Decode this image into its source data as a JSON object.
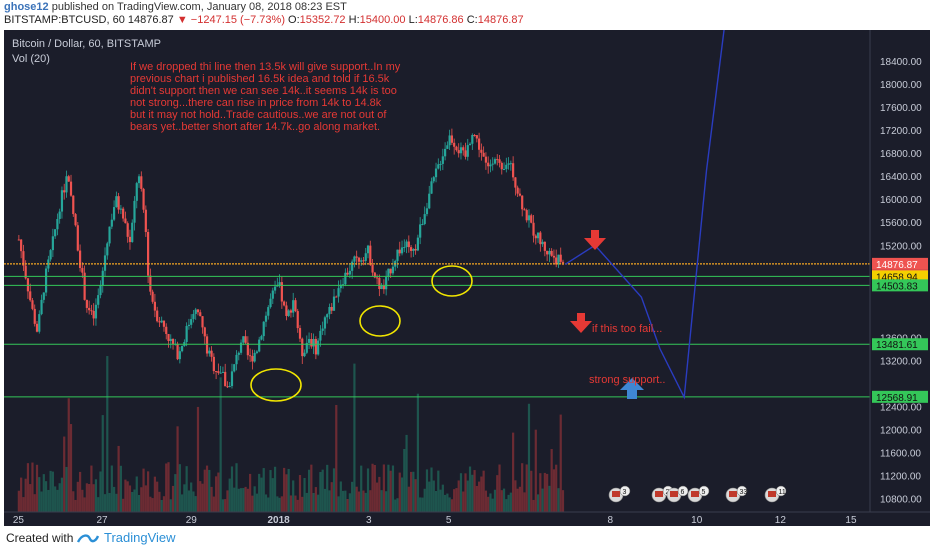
{
  "header": {
    "user": "ghose12",
    "published": "published on TradingView.com, January 08, 2018 08:23 EST",
    "symbol": "BITSTAMP:BTCUSD, 60",
    "last": "14876.87",
    "change": "−1247.15 (−7.73%)",
    "o_label": "O:",
    "o_val": "15352.72",
    "h_label": "H:",
    "h_val": "15400.00",
    "l_label": "L:",
    "l_val": "14876.86",
    "c_label": "C:",
    "c_val": "14876.87"
  },
  "chart": {
    "title": "Bitcoin / Dollar, 60, BITSTAMP",
    "vol_label": "Vol (20)",
    "note_lines": [
      "If we dropped thi line then 13.5k will give support..In my",
      "previous chart i published 16.5k idea and told if 16.5k",
      "didn't support then we can see 14k..it seems 14k is too",
      "not strong...there can rise in price from 14k to 14.8k",
      "but it may not hold..Trade cautious..we are not out of",
      "bears yet..better short after 14.7k..go along market."
    ],
    "note_fail": "if this too fail...",
    "note_support": "strong support..",
    "colors": {
      "bg": "#1b1d2a",
      "up": "#26a69a",
      "down": "#ef5350",
      "annot": "#e53935",
      "level": "#34c759",
      "current": "#f5a623",
      "forecast": "#2a3cc0",
      "circle": "#f2e600",
      "arrow_up": "#3f86d4"
    }
  },
  "chart_data": {
    "type": "candlestick",
    "title": "Bitcoin / Dollar, 60, BITSTAMP",
    "y_ticks": [
      "18400.00",
      "18000.00",
      "17600.00",
      "17200.00",
      "16800.00",
      "16400.00",
      "16000.00",
      "15600.00",
      "15200.00",
      "13600.00",
      "13200.00",
      "12400.00",
      "12000.00",
      "11600.00",
      "11200.00",
      "10800.00"
    ],
    "x_ticks": [
      "25",
      "27",
      "29",
      "2018",
      "3",
      "5",
      "8",
      "10",
      "12",
      "15"
    ],
    "price_labels": [
      {
        "text": "14876.87",
        "kind": "last"
      },
      {
        "text": "37:10",
        "kind": "countdown"
      },
      {
        "text": "14658.94",
        "kind": "level"
      },
      {
        "text": "14503.83",
        "kind": "level"
      },
      {
        "text": "13481.61",
        "kind": "level"
      },
      {
        "text": "12568.91",
        "kind": "level"
      }
    ],
    "levels": [
      14876.87,
      14658.94,
      14503.83,
      13481.61,
      12568.91
    ],
    "path_x": [
      25.0,
      25.3,
      25.7,
      26.0,
      26.4,
      26.8,
      27.2,
      27.6,
      28.0,
      28.3,
      28.6,
      29.0,
      29.4,
      29.8,
      30.2,
      30.6,
      31.0,
      31.4,
      31.8,
      32.0,
      32.4,
      32.8,
      33.2,
      33.6,
      34.0,
      34.4,
      34.8,
      35.1,
      35.5,
      35.9,
      36.2,
      36.6,
      37.0,
      37.4,
      37.8,
      38.2,
      38.6,
      39.0,
      39.4,
      39.8,
      40.2,
      40.6,
      41.0,
      41.4,
      41.8,
      42.2,
      42.6,
      43.0,
      43.4,
      43.8,
      44.2,
      44.6,
      45.0,
      45.4,
      45.8,
      46.2,
      46.6,
      47.0,
      47.4,
      47.8,
      48.2,
      48.6,
      49.0,
      49.4,
      49.8,
      50.2,
      50.6,
      51.0,
      51.4,
      51.8,
      52.2,
      52.6,
      53.0,
      53.4,
      53.8,
      54.2,
      54.4
    ],
    "path_price": [
      15300,
      14800,
      14100,
      13700,
      14600,
      15200,
      15900,
      16400,
      15600,
      14900,
      14200,
      13900,
      14500,
      15400,
      16000,
      15700,
      15200,
      16500,
      15600,
      14500,
      14000,
      13800,
      13500,
      13300,
      13700,
      14100,
      13900,
      13400,
      13100,
      13000,
      12700,
      13100,
      13600,
      13200,
      13400,
      13900,
      14300,
      14500,
      13900,
      14300,
      13300,
      13600,
      13400,
      13900,
      14100,
      14500,
      14700,
      14900,
      15000,
      15100,
      14600,
      14400,
      14800,
      15100,
      15200,
      15000,
      15500,
      16000,
      16400,
      16800,
      17100,
      16900,
      16700,
      17200,
      16900,
      16500,
      16800,
      16400,
      16700,
      16200,
      15800,
      15500,
      15300,
      15100,
      15000,
      14900,
      14877
    ],
    "forecast_x": [
      54.4,
      56.0,
      58.5,
      59.5,
      60.8,
      62.0,
      63.2
    ],
    "forecast_price": [
      14870,
      15200,
      14300,
      13400,
      12560,
      16500,
      19600
    ],
    "ylim": [
      10500,
      18850
    ],
    "xlim": [
      24.2,
      70.8
    ]
  }
}
